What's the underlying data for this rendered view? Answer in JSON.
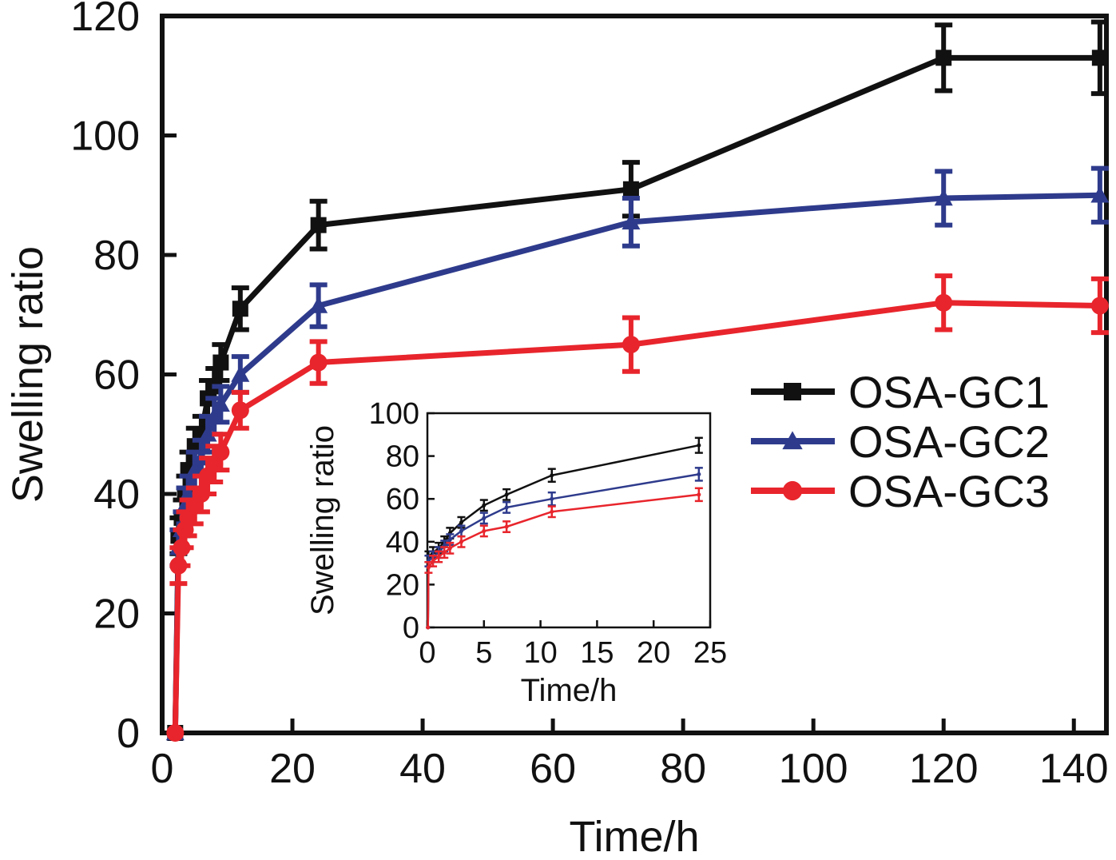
{
  "chart_data": [
    {
      "type": "line",
      "xlabel": "Time/h",
      "ylabel": "Swelling ratio",
      "xlim": [
        0,
        145
      ],
      "ylim": [
        0,
        120
      ],
      "xticks": [
        0,
        20,
        40,
        60,
        80,
        100,
        120,
        140
      ],
      "yticks": [
        0,
        20,
        40,
        60,
        80,
        100,
        120
      ],
      "legend_position": "right",
      "series": [
        {
          "name": "OSA-GC1",
          "color": "#111111",
          "marker": "square",
          "x": [
            2,
            2.5,
            3,
            3.5,
            4,
            5,
            6,
            7,
            8,
            9,
            12,
            24,
            72,
            120,
            144
          ],
          "y": [
            0,
            33,
            36,
            40,
            44,
            48,
            50,
            56,
            58,
            62,
            71,
            85,
            91,
            113,
            113
          ],
          "error": [
            0,
            3,
            3,
            3,
            3,
            3,
            3,
            3,
            3,
            3,
            3.5,
            4,
            4.5,
            5.5,
            6
          ]
        },
        {
          "name": "OSA-GC2",
          "color": "#2e3b8c",
          "marker": "triangle",
          "x": [
            2,
            2.5,
            3,
            3.5,
            4,
            5,
            6,
            7,
            8,
            9,
            12,
            24,
            72,
            120,
            144
          ],
          "y": [
            0,
            31,
            34,
            38,
            40,
            44,
            46,
            50,
            53,
            55,
            60,
            71.5,
            85.5,
            89.5,
            90
          ],
          "error": [
            0,
            3,
            3,
            3,
            3,
            3,
            3,
            3,
            3,
            3,
            3,
            3.5,
            4,
            4.5,
            4.5
          ]
        },
        {
          "name": "OSA-GC3",
          "color": "#e8252c",
          "marker": "circle",
          "x": [
            2,
            2.5,
            3,
            3.5,
            4,
            5,
            6,
            7,
            8,
            9,
            12,
            24,
            72,
            120,
            144
          ],
          "y": [
            0,
            28,
            31,
            34,
            36,
            38,
            40,
            43,
            45,
            47,
            54,
            62,
            65,
            72,
            71.5
          ],
          "error": [
            0,
            3,
            3,
            3,
            3,
            3,
            3,
            3,
            3,
            3,
            3,
            3.5,
            4.5,
            4.5,
            4.5
          ]
        }
      ]
    },
    {
      "type": "line",
      "xlabel": "Time/h",
      "ylabel": "Swelling ratio",
      "xlim": [
        0,
        25
      ],
      "ylim": [
        0,
        100
      ],
      "xticks": [
        0,
        5,
        10,
        15,
        20,
        25
      ],
      "yticks": [
        0,
        20,
        40,
        60,
        80,
        100
      ],
      "series": [
        {
          "name": "OSA-GC1",
          "color": "#111111",
          "x": [
            0.05,
            0.1,
            0.5,
            1,
            1.5,
            2,
            3,
            5,
            7,
            11,
            24
          ],
          "y": [
            0,
            33,
            35,
            37,
            40,
            44,
            49,
            57,
            62,
            71,
            85
          ],
          "error": [
            0,
            2.5,
            2.5,
            2.5,
            2.5,
            2.5,
            2.5,
            2.5,
            2.5,
            3,
            3.5
          ]
        },
        {
          "name": "OSA-GC2",
          "color": "#2e3b8c",
          "x": [
            0.05,
            0.1,
            0.5,
            1,
            1.5,
            2,
            3,
            5,
            7,
            11,
            24
          ],
          "y": [
            0,
            31,
            33,
            35,
            38,
            41,
            45,
            51,
            56,
            60,
            71.5
          ],
          "error": [
            0,
            2.5,
            2.5,
            2.5,
            2.5,
            2.5,
            2.5,
            2.5,
            2.5,
            3,
            3
          ]
        },
        {
          "name": "OSA-GC3",
          "color": "#e8252c",
          "x": [
            0.05,
            0.1,
            0.5,
            1,
            1.5,
            2,
            3,
            5,
            7,
            11,
            24
          ],
          "y": [
            0,
            28,
            31,
            33,
            35,
            37,
            40,
            45,
            47,
            54,
            62
          ],
          "error": [
            0,
            2.5,
            2.5,
            2.5,
            2.5,
            2.5,
            2.5,
            2.5,
            2.5,
            2.5,
            3
          ]
        }
      ]
    }
  ]
}
